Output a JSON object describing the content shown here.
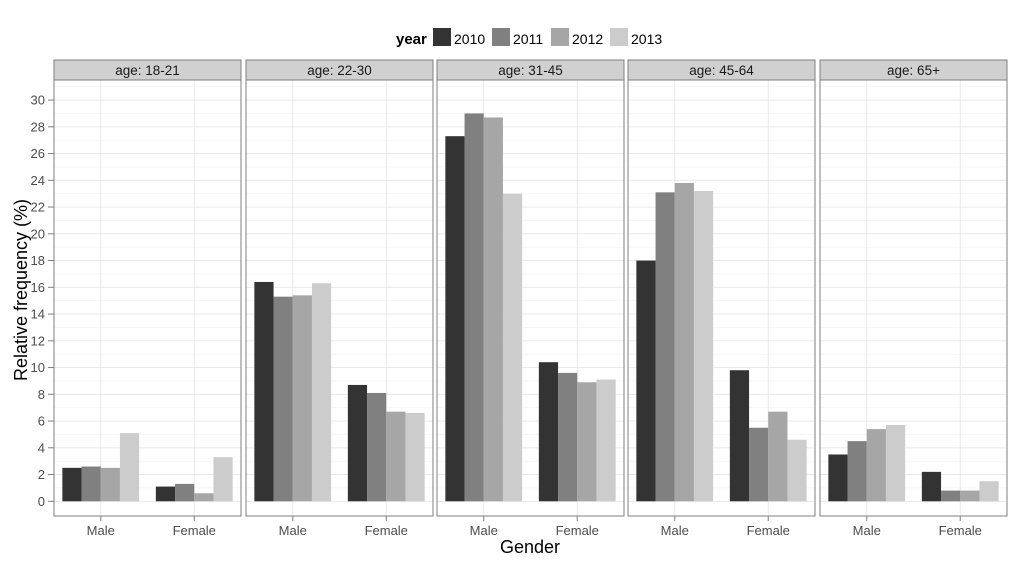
{
  "chart_data": {
    "type": "bar",
    "facet_label_prefix": "age: ",
    "facets": [
      "18-21",
      "22-30",
      "31-45",
      "45-64",
      "65+"
    ],
    "categories": [
      "Male",
      "Female"
    ],
    "legend_title": "year",
    "legend_position": "top",
    "series": [
      {
        "name": "2010",
        "color": "#333333"
      },
      {
        "name": "2011",
        "color": "#808080"
      },
      {
        "name": "2012",
        "color": "#a6a6a6"
      },
      {
        "name": "2013",
        "color": "#cccccc"
      }
    ],
    "values": {
      "18-21": {
        "Male": [
          2.5,
          2.6,
          2.5,
          5.1
        ],
        "Female": [
          1.1,
          1.3,
          0.6,
          3.3
        ]
      },
      "22-30": {
        "Male": [
          16.4,
          15.3,
          15.4,
          16.3
        ],
        "Female": [
          8.7,
          8.1,
          6.7,
          6.6
        ]
      },
      "31-45": {
        "Male": [
          27.3,
          29.0,
          28.7,
          23.0
        ],
        "Female": [
          10.4,
          9.6,
          8.9,
          9.1
        ]
      },
      "45-64": {
        "Male": [
          18.0,
          23.1,
          23.8,
          23.2
        ],
        "Female": [
          9.8,
          5.5,
          6.7,
          4.6
        ]
      },
      "65+": {
        "Male": [
          3.5,
          4.5,
          5.4,
          5.7
        ],
        "Female": [
          2.2,
          0.8,
          0.8,
          1.5
        ]
      }
    },
    "xlabel": "Gender",
    "ylabel": "Relative frequency (%)",
    "ylim": [
      -1.1,
      31.5
    ],
    "yticks": [
      0,
      2,
      4,
      6,
      8,
      10,
      12,
      14,
      16,
      18,
      20,
      22,
      24,
      26,
      28,
      30
    ],
    "grid": true
  }
}
